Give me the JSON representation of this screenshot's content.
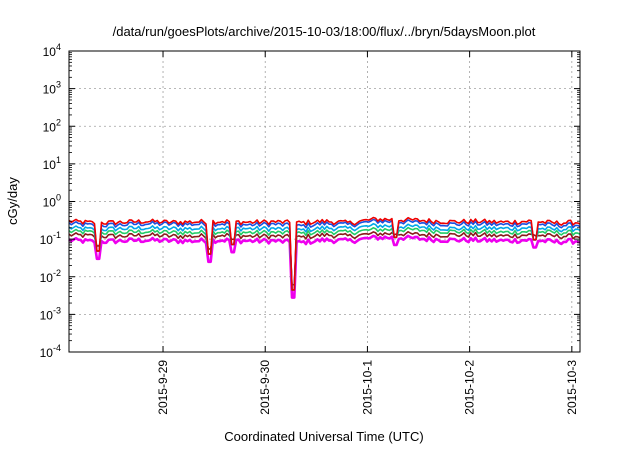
{
  "chart_data": {
    "type": "line",
    "title": "/data/run/goesPlots/archive/2015-10-03/18:00/flux/../bryn/5daysMoon.plot",
    "xlabel": "Coordinated Universal Time (UTC)",
    "ylabel": "cGy/day",
    "yscale": "log",
    "ylim": [
      0.0001,
      10000
    ],
    "xlim": [
      0,
      5
    ],
    "grid": true,
    "y_ticks": [
      {
        "base": "10",
        "exp": "-4",
        "value": 0.0001
      },
      {
        "base": "10",
        "exp": "-3",
        "value": 0.001
      },
      {
        "base": "10",
        "exp": "-2",
        "value": 0.01
      },
      {
        "base": "10",
        "exp": "-1",
        "value": 0.1
      },
      {
        "base": "10",
        "exp": "0",
        "value": 1
      },
      {
        "base": "10",
        "exp": "1",
        "value": 10
      },
      {
        "base": "10",
        "exp": "2",
        "value": 100
      },
      {
        "base": "10",
        "exp": "3",
        "value": 1000
      },
      {
        "base": "10",
        "exp": "4",
        "value": 10000
      }
    ],
    "x_ticks": [
      {
        "label": "2015-9-29",
        "value": 0.92
      },
      {
        "label": "2015-9-30",
        "value": 1.92
      },
      {
        "label": "2015-10-1",
        "value": 2.92
      },
      {
        "label": "2015-10-2",
        "value": 3.92
      },
      {
        "label": "2015-10-3",
        "value": 4.92
      }
    ],
    "x": [
      0,
      0.25,
      0.5,
      0.75,
      1.0,
      1.25,
      1.5,
      1.75,
      2.0,
      2.25,
      2.5,
      2.75,
      3.0,
      3.25,
      3.5,
      3.75,
      4.0,
      4.25,
      4.5,
      4.75,
      5.0
    ],
    "series": [
      {
        "color": "#ee0000",
        "values": [
          0.3,
          0.27,
          0.28,
          0.3,
          0.28,
          0.29,
          0.3,
          0.28,
          0.29,
          0.27,
          0.3,
          0.27,
          0.34,
          0.33,
          0.31,
          0.29,
          0.3,
          0.28,
          0.3,
          0.27,
          0.28
        ]
      },
      {
        "color": "#1a4fe0",
        "values": [
          0.26,
          0.23,
          0.24,
          0.26,
          0.25,
          0.25,
          0.26,
          0.24,
          0.25,
          0.22,
          0.26,
          0.24,
          0.3,
          0.29,
          0.27,
          0.25,
          0.26,
          0.24,
          0.26,
          0.23,
          0.24
        ]
      },
      {
        "color": "#00a8e8",
        "values": [
          0.2,
          0.18,
          0.19,
          0.2,
          0.19,
          0.19,
          0.2,
          0.19,
          0.19,
          0.17,
          0.2,
          0.19,
          0.23,
          0.22,
          0.21,
          0.19,
          0.2,
          0.19,
          0.2,
          0.18,
          0.19
        ]
      },
      {
        "color": "#22cc66",
        "values": [
          0.16,
          0.15,
          0.15,
          0.16,
          0.15,
          0.15,
          0.16,
          0.15,
          0.15,
          0.14,
          0.16,
          0.15,
          0.18,
          0.18,
          0.17,
          0.16,
          0.16,
          0.15,
          0.16,
          0.15,
          0.15
        ]
      },
      {
        "color": "#8b1a1a",
        "values": [
          0.13,
          0.12,
          0.12,
          0.13,
          0.12,
          0.12,
          0.13,
          0.12,
          0.12,
          0.11,
          0.13,
          0.12,
          0.14,
          0.14,
          0.13,
          0.13,
          0.13,
          0.12,
          0.13,
          0.12,
          0.12
        ]
      },
      {
        "color": "#ee00ee",
        "values": [
          0.095,
          0.085,
          0.09,
          0.095,
          0.09,
          0.09,
          0.095,
          0.09,
          0.09,
          0.08,
          0.095,
          0.09,
          0.11,
          0.11,
          0.1,
          0.095,
          0.095,
          0.09,
          0.095,
          0.085,
          0.09
        ]
      }
    ],
    "spikes": [
      {
        "x": 0.28,
        "value": 0.03
      },
      {
        "x": 1.37,
        "value": 0.025
      },
      {
        "x": 1.6,
        "value": 0.045
      },
      {
        "x": 2.2,
        "value": 0.0028
      },
      {
        "x": 3.2,
        "value": 0.07
      },
      {
        "x": 4.55,
        "value": 0.06
      }
    ]
  }
}
